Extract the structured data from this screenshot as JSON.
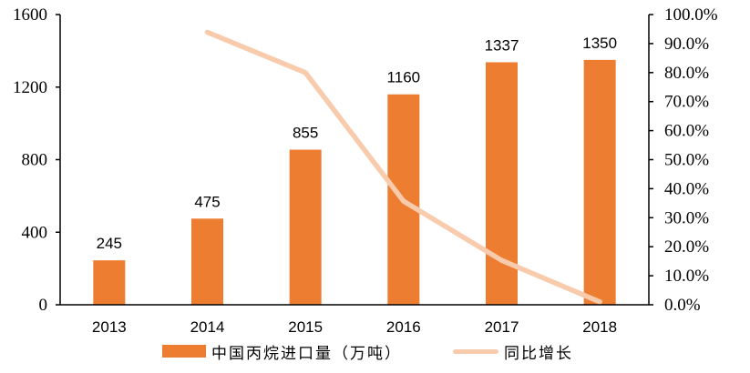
{
  "chart_data": {
    "type": "bar",
    "title": "",
    "xlabel": "",
    "ylabel": "",
    "categories": [
      "2013",
      "2014",
      "2015",
      "2016",
      "2017",
      "2018"
    ],
    "series": [
      {
        "name": "中国丙烷进口量（万吨）",
        "type": "bar",
        "axis": "left",
        "color": "#ED7D31",
        "values": [
          245,
          475,
          855,
          1160,
          1337,
          1350
        ],
        "data_labels": [
          "245",
          "475",
          "855",
          "1160",
          "1337",
          "1350"
        ]
      },
      {
        "name": "同比增长",
        "type": "line",
        "axis": "right",
        "color": "#F8CBAD",
        "values": [
          null,
          93.9,
          80.0,
          35.7,
          15.3,
          1.0
        ]
      }
    ],
    "ylim": [
      0,
      1600
    ],
    "y_ticks": [
      "0",
      "400",
      "800",
      "1200",
      "1600"
    ],
    "y2lim": [
      0,
      100
    ],
    "y2_ticks": [
      "0.0%",
      "10.0%",
      "20.0%",
      "30.0%",
      "40.0%",
      "50.0%",
      "60.0%",
      "70.0%",
      "80.0%",
      "90.0%",
      "100.0%"
    ],
    "grid": false,
    "legend_position": "bottom"
  },
  "legend": {
    "bar_label": "中国丙烷进口量（万吨）",
    "line_label": "同比增长"
  }
}
